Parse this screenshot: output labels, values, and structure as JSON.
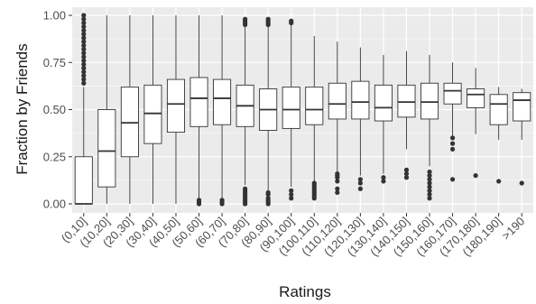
{
  "chart_data": {
    "type": "boxplot",
    "title": "",
    "xlabel": "Ratings",
    "ylabel": "Fraction by Friends",
    "ylim": [
      0,
      1
    ],
    "yticks": [
      0.0,
      0.25,
      0.5,
      0.75,
      1.0
    ],
    "ytick_labels": [
      "0.00",
      "0.25",
      "0.50",
      "0.75",
      "1.00"
    ],
    "grid": true,
    "legend": "none",
    "colors": {
      "panel": "#ebebeb",
      "grid": "#ffffff",
      "box_fill": "#ffffff",
      "box_line": "#333333",
      "outlier": "#333333"
    },
    "categories": [
      "(0,10]",
      "(10,20]",
      "(20,30]",
      "(30,40]",
      "(40,50]",
      "(50,60]",
      "(60,70]",
      "(70,80]",
      "(80,90]",
      "(90,100]",
      "(100,110]",
      "(110,120]",
      "(120,130]",
      "(130,140]",
      "(140,150]",
      "(150,160]",
      "(160,170]",
      "(170,180]",
      "(180,190]",
      ">190"
    ],
    "boxes": [
      {
        "whisker_low": 0.0,
        "q1": 0.0,
        "median": 0.0,
        "q3": 0.25,
        "whisker_high": 0.62,
        "outliers": [
          0.64,
          0.66,
          0.68,
          0.7,
          0.72,
          0.74,
          0.76,
          0.78,
          0.8,
          0.82,
          0.84,
          0.86,
          0.88,
          0.9,
          0.92,
          0.94,
          0.96,
          0.98,
          1.0
        ]
      },
      {
        "whisker_low": 0.0,
        "q1": 0.09,
        "median": 0.28,
        "q3": 0.5,
        "whisker_high": 1.0,
        "outliers": []
      },
      {
        "whisker_low": 0.0,
        "q1": 0.25,
        "median": 0.43,
        "q3": 0.62,
        "whisker_high": 1.0,
        "outliers": []
      },
      {
        "whisker_low": 0.0,
        "q1": 0.32,
        "median": 0.48,
        "q3": 0.63,
        "whisker_high": 1.0,
        "outliers": []
      },
      {
        "whisker_low": 0.0,
        "q1": 0.38,
        "median": 0.53,
        "q3": 0.66,
        "whisker_high": 1.0,
        "outliers": []
      },
      {
        "whisker_low": 0.03,
        "q1": 0.41,
        "median": 0.56,
        "q3": 0.67,
        "whisker_high": 1.0,
        "outliers": [
          0.0,
          0.01,
          0.02
        ]
      },
      {
        "whisker_low": 0.03,
        "q1": 0.42,
        "median": 0.56,
        "q3": 0.66,
        "whisker_high": 1.0,
        "outliers": [
          0.0,
          0.01,
          0.02
        ]
      },
      {
        "whisker_low": 0.1,
        "q1": 0.41,
        "median": 0.52,
        "q3": 0.63,
        "whisker_high": 0.94,
        "outliers": [
          0.0,
          0.01,
          0.02,
          0.03,
          0.04,
          0.05,
          0.06,
          0.07,
          0.08,
          0.95,
          0.96,
          0.97,
          0.98
        ]
      },
      {
        "whisker_low": 0.07,
        "q1": 0.39,
        "median": 0.5,
        "q3": 0.61,
        "whisker_high": 0.94,
        "outliers": [
          0.0,
          0.01,
          0.02,
          0.03,
          0.05,
          0.06,
          0.95,
          0.96,
          0.97,
          0.98
        ]
      },
      {
        "whisker_low": 0.09,
        "q1": 0.4,
        "median": 0.5,
        "q3": 0.62,
        "whisker_high": 0.95,
        "outliers": [
          0.03,
          0.05,
          0.07,
          0.96,
          0.97
        ]
      },
      {
        "whisker_low": 0.12,
        "q1": 0.42,
        "median": 0.5,
        "q3": 0.62,
        "whisker_high": 0.89,
        "outliers": [
          0.03,
          0.04,
          0.05,
          0.06,
          0.07,
          0.08,
          0.09,
          0.1,
          0.11
        ]
      },
      {
        "whisker_low": 0.17,
        "q1": 0.45,
        "median": 0.53,
        "q3": 0.64,
        "whisker_high": 0.86,
        "outliers": [
          0.06,
          0.08,
          0.12,
          0.14,
          0.15,
          0.16
        ]
      },
      {
        "whisker_low": 0.15,
        "q1": 0.45,
        "median": 0.54,
        "q3": 0.65,
        "whisker_high": 0.83,
        "outliers": [
          0.08,
          0.11,
          0.13
        ]
      },
      {
        "whisker_low": 0.16,
        "q1": 0.44,
        "median": 0.51,
        "q3": 0.63,
        "whisker_high": 0.79,
        "outliers": [
          0.12,
          0.14
        ]
      },
      {
        "whisker_low": 0.29,
        "q1": 0.46,
        "median": 0.54,
        "q3": 0.63,
        "whisker_high": 0.81,
        "outliers": [
          0.14,
          0.16,
          0.18
        ]
      },
      {
        "whisker_low": 0.2,
        "q1": 0.45,
        "median": 0.54,
        "q3": 0.64,
        "whisker_high": 0.79,
        "outliers": [
          0.03,
          0.05,
          0.07,
          0.09,
          0.11,
          0.13,
          0.15,
          0.17
        ]
      },
      {
        "whisker_low": 0.36,
        "q1": 0.53,
        "median": 0.6,
        "q3": 0.64,
        "whisker_high": 0.75,
        "outliers": [
          0.13,
          0.29,
          0.32,
          0.35
        ]
      },
      {
        "whisker_low": 0.37,
        "q1": 0.51,
        "median": 0.58,
        "q3": 0.61,
        "whisker_high": 0.72,
        "outliers": [
          0.15
        ]
      },
      {
        "whisker_low": 0.34,
        "q1": 0.42,
        "median": 0.53,
        "q3": 0.58,
        "whisker_high": 0.62,
        "outliers": [
          0.12
        ]
      },
      {
        "whisker_low": 0.34,
        "q1": 0.44,
        "median": 0.55,
        "q3": 0.59,
        "whisker_high": 0.61,
        "outliers": [
          0.11
        ]
      }
    ]
  }
}
